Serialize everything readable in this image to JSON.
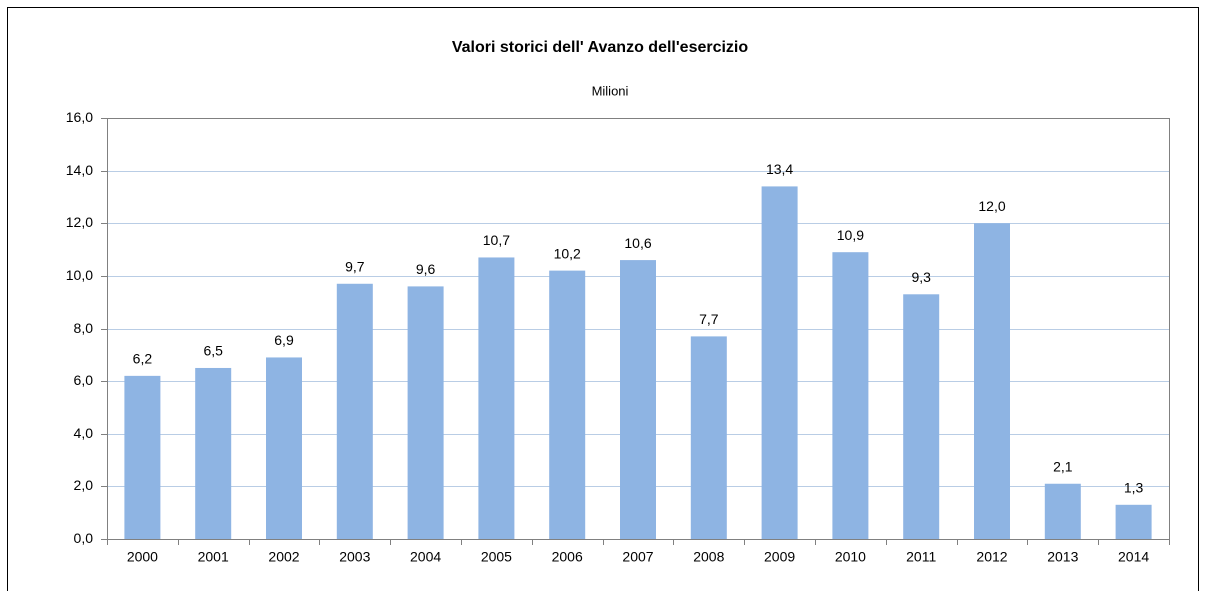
{
  "chart_data": {
    "type": "bar",
    "title": "Valori storici dell' Avanzo dell'esercizio",
    "subtitle": "Milioni",
    "categories": [
      "2000",
      "2001",
      "2002",
      "2003",
      "2004",
      "2005",
      "2006",
      "2007",
      "2008",
      "2009",
      "2010",
      "2011",
      "2012",
      "2013",
      "2014"
    ],
    "values": [
      6.2,
      6.5,
      6.9,
      9.7,
      9.6,
      10.7,
      10.2,
      10.6,
      7.7,
      13.4,
      10.9,
      9.3,
      12.0,
      2.1,
      1.3
    ],
    "value_labels": [
      "6,2",
      "6,5",
      "6,9",
      "9,7",
      "9,6",
      "10,7",
      "10,2",
      "10,6",
      "7,7",
      "13,4",
      "10,9",
      "9,3",
      "12,0",
      "2,1",
      "1,3"
    ],
    "color": "#8eb4e3",
    "ylim": [
      0,
      16
    ],
    "yticks": [
      {
        "value": 0,
        "label": "0,0"
      },
      {
        "value": 2,
        "label": "2,0"
      },
      {
        "value": 4,
        "label": "4,0"
      },
      {
        "value": 6,
        "label": "6,0"
      },
      {
        "value": 8,
        "label": "8,0"
      },
      {
        "value": 10,
        "label": "10,0"
      },
      {
        "value": 12,
        "label": "12,0"
      },
      {
        "value": 14,
        "label": "14,0"
      },
      {
        "value": 16,
        "label": "16,0"
      }
    ],
    "grid": true
  }
}
